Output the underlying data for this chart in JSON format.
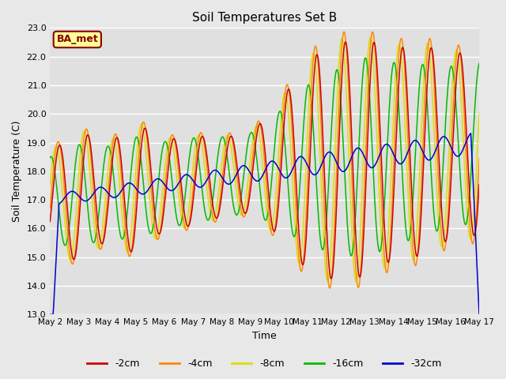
{
  "title": "Soil Temperatures Set B",
  "xlabel": "Time",
  "ylabel": "Soil Temperature (C)",
  "ylim": [
    13.0,
    23.0
  ],
  "yticks": [
    13.0,
    14.0,
    15.0,
    16.0,
    17.0,
    18.0,
    19.0,
    20.0,
    21.0,
    22.0,
    23.0
  ],
  "xtick_labels": [
    "May 2",
    "May 3",
    "May 4",
    "May 5",
    "May 6",
    "May 7",
    "May 8",
    "May 9",
    "May 10",
    "May 11",
    "May 12",
    "May 13",
    "May 14",
    "May 15",
    "May 16",
    "May 17"
  ],
  "legend_labels": [
    "-2cm",
    "-4cm",
    "-8cm",
    "-16cm",
    "-32cm"
  ],
  "line_colors": [
    "#cc0000",
    "#ff8800",
    "#dddd00",
    "#00bb00",
    "#0000cc"
  ],
  "bg_color": "#e8e8e8",
  "plot_bg_color": "#e0e0e0",
  "annotation_text": "BA_met",
  "annotation_bg": "#ffff99",
  "annotation_border": "#880000"
}
